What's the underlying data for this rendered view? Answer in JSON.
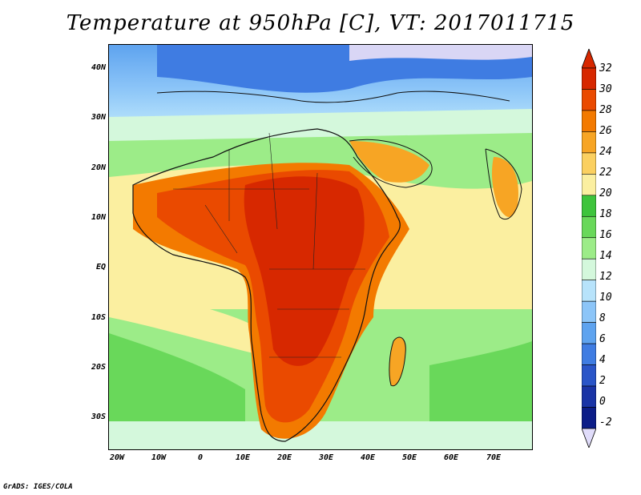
{
  "title": "Temperature at 950hPa [C], VT: 2017011715",
  "credit": "GrADS: IGES/COLA",
  "map": {
    "lat_labels": [
      "40N",
      "30N",
      "20N",
      "10N",
      "EQ",
      "10S",
      "20S",
      "30S"
    ],
    "lon_labels": [
      "20W",
      "10W",
      "0",
      "10E",
      "20E",
      "30E",
      "40E",
      "50E",
      "60E",
      "70E"
    ]
  },
  "colorbar": {
    "labels": [
      "32",
      "30",
      "28",
      "26",
      "24",
      "22",
      "20",
      "18",
      "16",
      "14",
      "12",
      "10",
      "8",
      "6",
      "4",
      "2",
      "0",
      "-2"
    ],
    "colors": [
      "#d72800",
      "#ea4a00",
      "#f37a00",
      "#f7a524",
      "#fbd060",
      "#fbefa0",
      "#3ec43c",
      "#69d85a",
      "#9cec88",
      "#d4f8dc",
      "#b7e3fb",
      "#8cc5f8",
      "#5ea3ef",
      "#3f7ce2",
      "#2a55c8",
      "#1a34a6",
      "#0c1d88"
    ],
    "top_arrow_color": "#d72800",
    "bottom_arrow_color": "#e0dcfa"
  }
}
